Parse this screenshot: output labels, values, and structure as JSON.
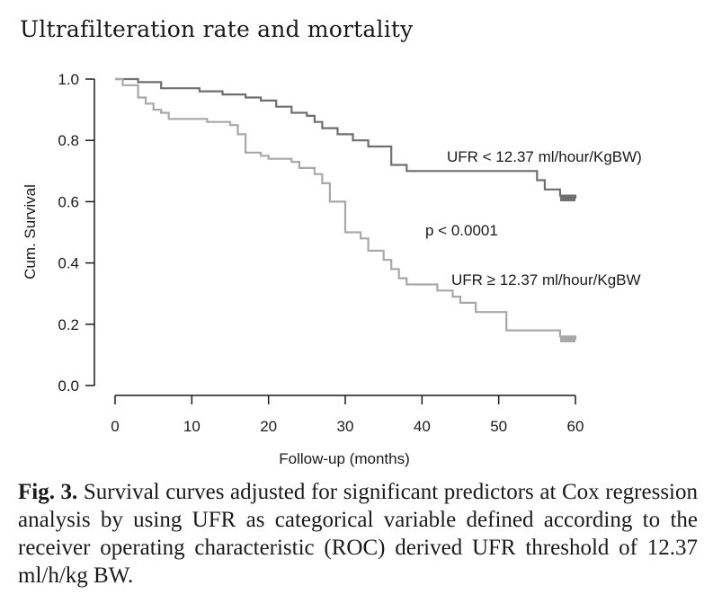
{
  "header": {
    "title": "Ultrafilteration rate and mortality"
  },
  "chart_data": {
    "type": "line",
    "subtype": "kaplan-meier-step",
    "title": "",
    "xlabel": "Follow-up (months)",
    "ylabel": "Cum. Survival",
    "xlim": [
      0,
      60
    ],
    "ylim": [
      0,
      1.0
    ],
    "x_ticks": [
      "0",
      "10",
      "20",
      "30",
      "40",
      "50",
      "60"
    ],
    "y_ticks": [
      "0.0",
      "0.2",
      "0.4",
      "0.6",
      "0.8",
      "1.0"
    ],
    "grid": false,
    "annotation": "p < 0.0001",
    "series": [
      {
        "name": "UFR < 12.37 ml/hour/KgBW)",
        "color": "#6f6f6f",
        "points": [
          [
            0,
            1.0
          ],
          [
            3,
            0.99
          ],
          [
            6,
            0.97
          ],
          [
            11,
            0.96
          ],
          [
            14,
            0.95
          ],
          [
            17,
            0.94
          ],
          [
            19,
            0.93
          ],
          [
            21,
            0.91
          ],
          [
            23,
            0.89
          ],
          [
            25,
            0.88
          ],
          [
            26,
            0.86
          ],
          [
            27,
            0.84
          ],
          [
            29,
            0.82
          ],
          [
            31,
            0.8
          ],
          [
            33,
            0.78
          ],
          [
            36,
            0.76
          ],
          [
            36,
            0.72
          ],
          [
            38,
            0.7
          ],
          [
            54,
            0.7
          ],
          [
            55,
            0.67
          ],
          [
            56,
            0.64
          ],
          [
            58,
            0.62
          ],
          [
            60,
            0.61
          ]
        ]
      },
      {
        "name": "UFR ≥ 12.37 ml/hour/KgBW",
        "color": "#a8a8a8",
        "points": [
          [
            0,
            1.0
          ],
          [
            1,
            0.98
          ],
          [
            3,
            0.94
          ],
          [
            4,
            0.92
          ],
          [
            5,
            0.9
          ],
          [
            6,
            0.89
          ],
          [
            7,
            0.87
          ],
          [
            12,
            0.86
          ],
          [
            15,
            0.85
          ],
          [
            16,
            0.82
          ],
          [
            17,
            0.76
          ],
          [
            19,
            0.75
          ],
          [
            20,
            0.74
          ],
          [
            23,
            0.73
          ],
          [
            24,
            0.71
          ],
          [
            26,
            0.69
          ],
          [
            27,
            0.66
          ],
          [
            28,
            0.6
          ],
          [
            30,
            0.5
          ],
          [
            32,
            0.48
          ],
          [
            33,
            0.44
          ],
          [
            35,
            0.41
          ],
          [
            36,
            0.38
          ],
          [
            37,
            0.35
          ],
          [
            38,
            0.33
          ],
          [
            42,
            0.31
          ],
          [
            44,
            0.29
          ],
          [
            45,
            0.27
          ],
          [
            47,
            0.24
          ],
          [
            51,
            0.18
          ],
          [
            58,
            0.16
          ],
          [
            60,
            0.15
          ]
        ]
      }
    ],
    "series_labels": [
      "UFR < 12.37 ml/hour/KgBW)",
      "UFR ≥ 12.37 ml/hour/KgBW"
    ]
  },
  "caption": {
    "lead": "Fig. 3.",
    "text": "Survival curves adjusted for significant predictors at Cox regression analysis by using UFR as categorical variable defined according to the receiver operating characteristic (ROC) derived UFR threshold of 12.37 ml/h/kg BW."
  }
}
